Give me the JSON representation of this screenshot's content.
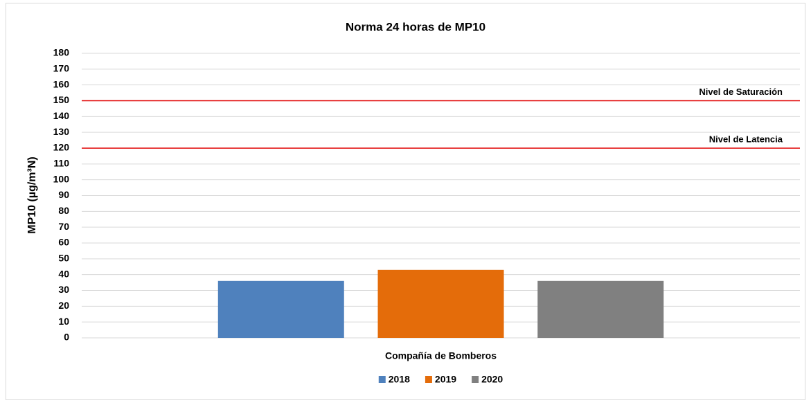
{
  "chart_data": {
    "type": "bar",
    "title": "Norma 24 horas de MP10",
    "y_label": "MP10 (µg/m³N)",
    "categories": [
      "Compañía de Bomberos"
    ],
    "series": [
      {
        "name": "2018",
        "color": "#4f81bd",
        "values": [
          36
        ]
      },
      {
        "name": "2019",
        "color": "#e46c0a",
        "values": [
          43
        ]
      },
      {
        "name": "2020",
        "color": "#808080",
        "values": [
          36
        ]
      }
    ],
    "reference_lines": [
      {
        "label": "Nivel de Saturación",
        "value": 150,
        "color": "#e00000"
      },
      {
        "label": "Nivel de Latencia",
        "value": 120,
        "color": "#e00000"
      }
    ],
    "ylim": [
      0,
      180
    ],
    "yticks": [
      0,
      10,
      20,
      30,
      40,
      50,
      60,
      70,
      80,
      90,
      100,
      110,
      120,
      130,
      140,
      150,
      160,
      170,
      180
    ],
    "grid": true,
    "legend": "bottom"
  }
}
